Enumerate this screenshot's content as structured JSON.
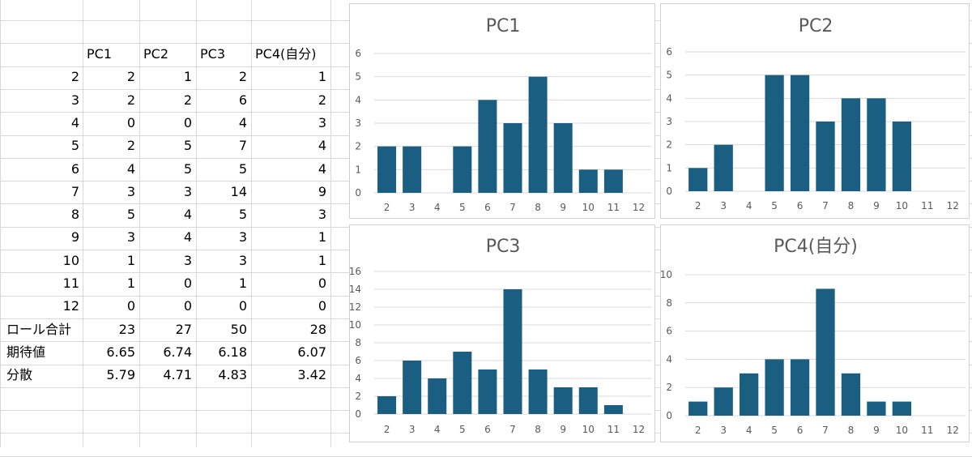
{
  "table": {
    "headers": [
      "PC1",
      "PC2",
      "PC3",
      "PC4(自分)"
    ],
    "rows": [
      {
        "label": "2",
        "values": [
          "2",
          "1",
          "2",
          "1"
        ]
      },
      {
        "label": "3",
        "values": [
          "2",
          "2",
          "6",
          "2"
        ]
      },
      {
        "label": "4",
        "values": [
          "0",
          "0",
          "4",
          "3"
        ]
      },
      {
        "label": "5",
        "values": [
          "2",
          "5",
          "7",
          "4"
        ]
      },
      {
        "label": "6",
        "values": [
          "4",
          "5",
          "5",
          "4"
        ]
      },
      {
        "label": "7",
        "values": [
          "3",
          "3",
          "14",
          "9"
        ]
      },
      {
        "label": "8",
        "values": [
          "5",
          "4",
          "5",
          "3"
        ]
      },
      {
        "label": "9",
        "values": [
          "3",
          "4",
          "3",
          "1"
        ]
      },
      {
        "label": "10",
        "values": [
          "1",
          "3",
          "3",
          "1"
        ]
      },
      {
        "label": "11",
        "values": [
          "1",
          "0",
          "1",
          "0"
        ]
      },
      {
        "label": "12",
        "values": [
          "0",
          "0",
          "0",
          "0"
        ]
      }
    ],
    "summary": [
      {
        "label": "ロール合計",
        "values": [
          "23",
          "27",
          "50",
          "28"
        ]
      },
      {
        "label": "期待値",
        "values": [
          "6.65",
          "6.74",
          "6.18",
          "6.07"
        ]
      },
      {
        "label": "分散",
        "values": [
          "5.79",
          "4.71",
          "4.83",
          "3.42"
        ]
      }
    ]
  },
  "chart_data": [
    {
      "type": "bar",
      "title": "PC1",
      "categories": [
        "2",
        "3",
        "4",
        "5",
        "6",
        "7",
        "8",
        "9",
        "10",
        "11",
        "12"
      ],
      "values": [
        2,
        2,
        0,
        2,
        4,
        3,
        5,
        3,
        1,
        1,
        0
      ],
      "ylim": [
        0,
        6
      ],
      "yticks": [
        0,
        1,
        2,
        3,
        4,
        5,
        6
      ],
      "grid": true,
      "color": "#1a5f82"
    },
    {
      "type": "bar",
      "title": "PC2",
      "categories": [
        "2",
        "3",
        "4",
        "5",
        "6",
        "7",
        "8",
        "9",
        "10",
        "11",
        "12"
      ],
      "values": [
        1,
        2,
        0,
        5,
        5,
        3,
        4,
        4,
        3,
        0,
        0
      ],
      "ylim": [
        0,
        6
      ],
      "yticks": [
        0,
        1,
        2,
        3,
        4,
        5,
        6
      ],
      "grid": true,
      "color": "#1a5f82"
    },
    {
      "type": "bar",
      "title": "PC3",
      "categories": [
        "2",
        "3",
        "4",
        "5",
        "6",
        "7",
        "8",
        "9",
        "10",
        "11",
        "12"
      ],
      "values": [
        2,
        6,
        4,
        7,
        5,
        14,
        5,
        3,
        3,
        1,
        0
      ],
      "ylim": [
        0,
        16
      ],
      "yticks": [
        0,
        2,
        4,
        6,
        8,
        10,
        12,
        14,
        16
      ],
      "grid": true,
      "color": "#1a5f82"
    },
    {
      "type": "bar",
      "title": "PC4(自分)",
      "categories": [
        "2",
        "3",
        "4",
        "5",
        "6",
        "7",
        "8",
        "9",
        "10",
        "11",
        "12"
      ],
      "values": [
        1,
        2,
        3,
        4,
        4,
        9,
        3,
        1,
        1,
        0,
        0
      ],
      "ylim": [
        0,
        10
      ],
      "yticks": [
        0,
        2,
        4,
        6,
        8,
        10
      ],
      "grid": true,
      "color": "#1a5f82"
    }
  ]
}
